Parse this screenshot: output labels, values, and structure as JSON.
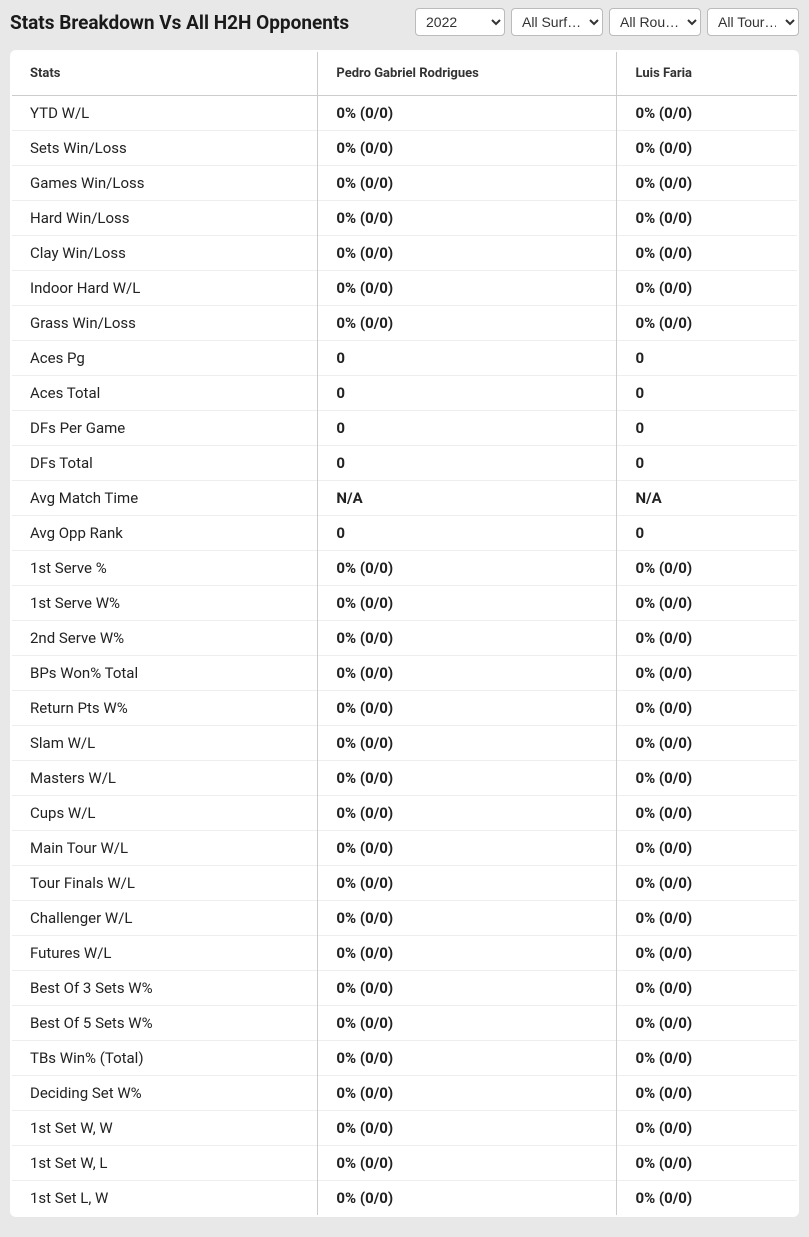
{
  "title": "Stats Breakdown Vs All H2H Opponents",
  "filters": {
    "year": {
      "selected": "2022",
      "options": [
        "2022"
      ]
    },
    "surface": {
      "selected": "All Surf…",
      "options": [
        "All Surf…"
      ]
    },
    "round": {
      "selected": "All Rou…",
      "options": [
        "All Rou…"
      ]
    },
    "tour": {
      "selected": "All Tour…",
      "options": [
        "All Tour…"
      ]
    }
  },
  "columns": {
    "stats": "Stats",
    "player1": "Pedro Gabriel Rodrigues",
    "player2": "Luis Faria"
  },
  "rows": [
    {
      "stat": "YTD W/L",
      "p1": "0% (0/0)",
      "p2": "0% (0/0)"
    },
    {
      "stat": "Sets Win/Loss",
      "p1": "0% (0/0)",
      "p2": "0% (0/0)"
    },
    {
      "stat": "Games Win/Loss",
      "p1": "0% (0/0)",
      "p2": "0% (0/0)"
    },
    {
      "stat": "Hard Win/Loss",
      "p1": "0% (0/0)",
      "p2": "0% (0/0)"
    },
    {
      "stat": "Clay Win/Loss",
      "p1": "0% (0/0)",
      "p2": "0% (0/0)"
    },
    {
      "stat": "Indoor Hard W/L",
      "p1": "0% (0/0)",
      "p2": "0% (0/0)"
    },
    {
      "stat": "Grass Win/Loss",
      "p1": "0% (0/0)",
      "p2": "0% (0/0)"
    },
    {
      "stat": "Aces Pg",
      "p1": "0",
      "p2": "0"
    },
    {
      "stat": "Aces Total",
      "p1": "0",
      "p2": "0"
    },
    {
      "stat": "DFs Per Game",
      "p1": "0",
      "p2": "0"
    },
    {
      "stat": "DFs Total",
      "p1": "0",
      "p2": "0"
    },
    {
      "stat": "Avg Match Time",
      "p1": "N/A",
      "p2": "N/A"
    },
    {
      "stat": "Avg Opp Rank",
      "p1": "0",
      "p2": "0"
    },
    {
      "stat": "1st Serve %",
      "p1": "0% (0/0)",
      "p2": "0% (0/0)"
    },
    {
      "stat": "1st Serve W%",
      "p1": "0% (0/0)",
      "p2": "0% (0/0)"
    },
    {
      "stat": "2nd Serve W%",
      "p1": "0% (0/0)",
      "p2": "0% (0/0)"
    },
    {
      "stat": "BPs Won% Total",
      "p1": "0% (0/0)",
      "p2": "0% (0/0)"
    },
    {
      "stat": "Return Pts W%",
      "p1": "0% (0/0)",
      "p2": "0% (0/0)"
    },
    {
      "stat": "Slam W/L",
      "p1": "0% (0/0)",
      "p2": "0% (0/0)"
    },
    {
      "stat": "Masters W/L",
      "p1": "0% (0/0)",
      "p2": "0% (0/0)"
    },
    {
      "stat": "Cups W/L",
      "p1": "0% (0/0)",
      "p2": "0% (0/0)"
    },
    {
      "stat": "Main Tour W/L",
      "p1": "0% (0/0)",
      "p2": "0% (0/0)"
    },
    {
      "stat": "Tour Finals W/L",
      "p1": "0% (0/0)",
      "p2": "0% (0/0)"
    },
    {
      "stat": "Challenger W/L",
      "p1": "0% (0/0)",
      "p2": "0% (0/0)"
    },
    {
      "stat": "Futures W/L",
      "p1": "0% (0/0)",
      "p2": "0% (0/0)"
    },
    {
      "stat": "Best Of 3 Sets W%",
      "p1": "0% (0/0)",
      "p2": "0% (0/0)"
    },
    {
      "stat": "Best Of 5 Sets W%",
      "p1": "0% (0/0)",
      "p2": "0% (0/0)"
    },
    {
      "stat": "TBs Win% (Total)",
      "p1": "0% (0/0)",
      "p2": "0% (0/0)"
    },
    {
      "stat": "Deciding Set W%",
      "p1": "0% (0/0)",
      "p2": "0% (0/0)"
    },
    {
      "stat": "1st Set W, W",
      "p1": "0% (0/0)",
      "p2": "0% (0/0)"
    },
    {
      "stat": "1st Set W, L",
      "p1": "0% (0/0)",
      "p2": "0% (0/0)"
    },
    {
      "stat": "1st Set L, W",
      "p1": "0% (0/0)",
      "p2": "0% (0/0)"
    }
  ]
}
